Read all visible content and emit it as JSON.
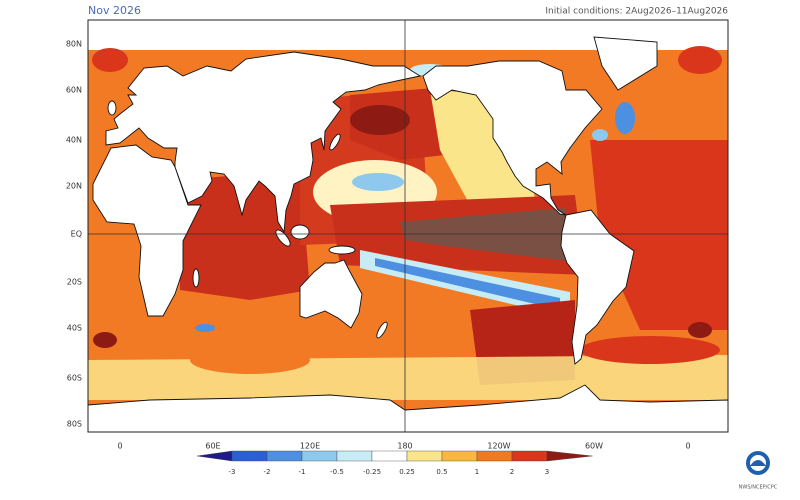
{
  "header": {
    "title": "Nov 2026",
    "initial_conditions": "Initial conditions: 2Aug2026–11Aug2026"
  },
  "map": {
    "lat_labels": [
      "80N",
      "60N",
      "40N",
      "20N",
      "EQ",
      "20S",
      "40S",
      "60S",
      "80S"
    ],
    "lon_labels": [
      "0",
      "60E",
      "120E",
      "180",
      "120W",
      "60W",
      "0"
    ]
  },
  "colorbar": {
    "labels": [
      "-3",
      "-2",
      "-1",
      "-0.5",
      "-0.25",
      "0.25",
      "0.5",
      "1",
      "2",
      "3"
    ],
    "colors": [
      "#1d1a8a",
      "#2b5fd4",
      "#4d8fe0",
      "#8ec8ec",
      "#c8ecf5",
      "#ffffff",
      "#fbe58b",
      "#f9b640",
      "#f07a22",
      "#d9361b",
      "#8e1a14"
    ]
  },
  "logo": {
    "text": "NWS/NCEP/CPC"
  }
}
